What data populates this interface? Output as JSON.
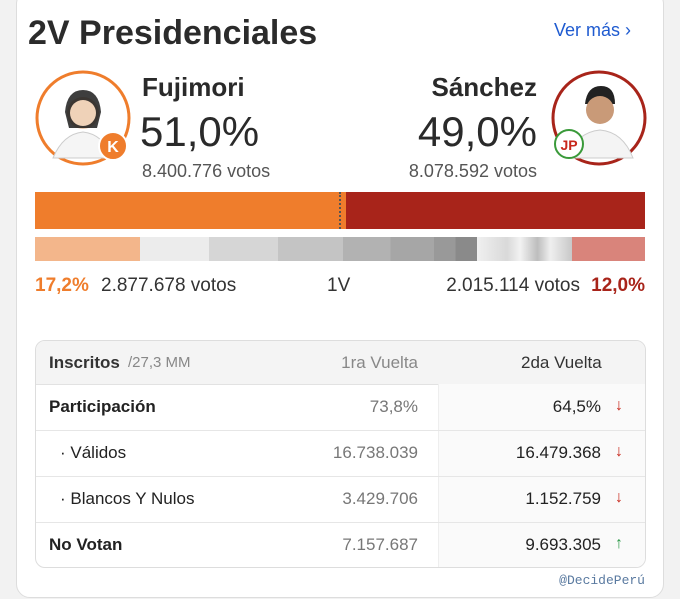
{
  "header": {
    "title": "2V Presidenciales",
    "link": "Ver más"
  },
  "candidates": [
    {
      "name": "Fujimori",
      "share": {
        "value": 51.0,
        "label": "51,0%"
      },
      "votes": "8.400.776 votos",
      "first_round": {
        "share": {
          "value": 17.2,
          "label": "17,2%"
        },
        "votes": "2.877.678 votos"
      }
    },
    {
      "name": "Sánchez",
      "share": {
        "value": 49.0,
        "label": "49,0%"
      },
      "votes": "8.078.592 votos",
      "first_round": {
        "share": {
          "value": 12.0,
          "label": "12,0%"
        },
        "votes": "2.015.114 votos"
      }
    }
  ],
  "first_round_label": "1V",
  "table": {
    "header": {
      "label": "Inscritos",
      "note": "/27,3 MM",
      "col1": "1ra Vuelta",
      "col2": "2da Vuelta"
    },
    "rows": [
      [
        "Participación",
        "73,8%",
        "64,5%"
      ],
      [
        "· Válidos",
        "16.738.039",
        "16.479.368"
      ],
      [
        "· Blancos Y Nulos",
        "3.429.706",
        "1.152.759"
      ],
      [
        "No Votan",
        "7.157.687",
        "9.693.305"
      ]
    ]
  },
  "source": "@DecidePerú"
}
